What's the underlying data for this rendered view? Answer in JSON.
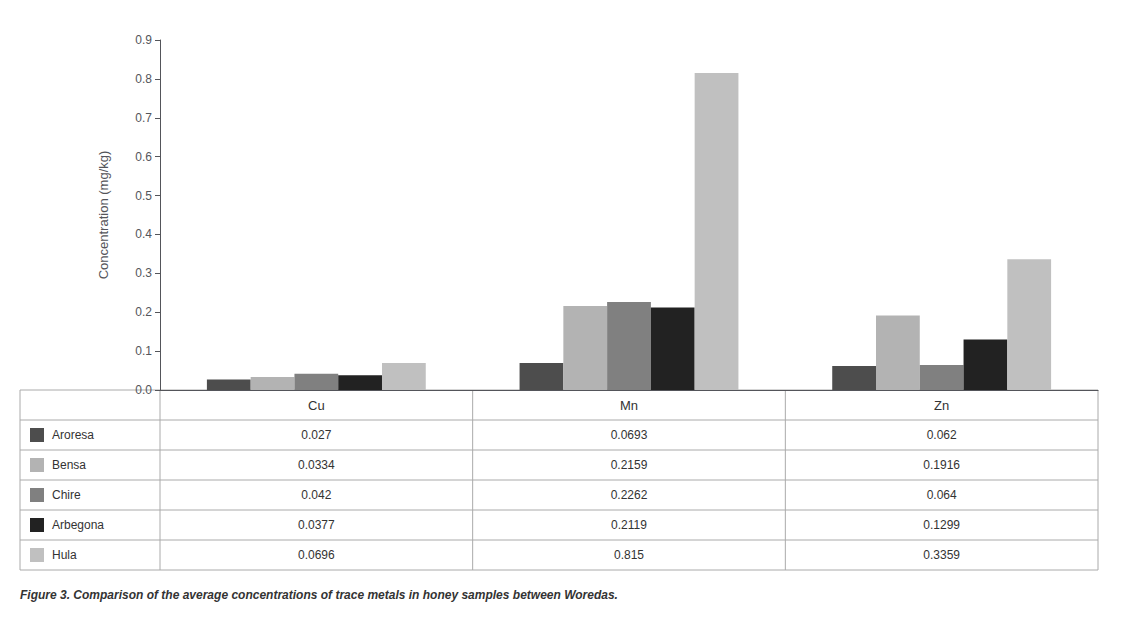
{
  "chart_data": {
    "type": "bar",
    "categories": [
      "Cu",
      "Mn",
      "Zn"
    ],
    "series": [
      {
        "name": "Aroresa",
        "values": [
          0.027,
          0.0693,
          0.062
        ],
        "color": "#4d4d4d"
      },
      {
        "name": "Bensa",
        "values": [
          0.0334,
          0.2159,
          0.1916
        ],
        "color": "#b3b3b3"
      },
      {
        "name": "Chire",
        "values": [
          0.042,
          0.2262,
          0.064
        ],
        "color": "#808080"
      },
      {
        "name": "Arbegona",
        "values": [
          0.0377,
          0.2119,
          0.1299
        ],
        "color": "#222222"
      },
      {
        "name": "Hula",
        "values": [
          0.0696,
          0.815,
          0.3359
        ],
        "color": "#c0c0c0"
      }
    ],
    "ylabel": "Concentration (mg/kg)",
    "ylim": [
      0,
      0.9
    ],
    "yticks": [
      {
        "value": 0,
        "label": "0.0"
      },
      0.1,
      0.2,
      0.3,
      0.4,
      0.5,
      0.6,
      0.7,
      0.8,
      0.9
    ],
    "grid": false,
    "tick_labels": "y",
    "caption": "Figure 3. Comparison of the average concentrations of trace metals in honey samples between Woredas."
  }
}
